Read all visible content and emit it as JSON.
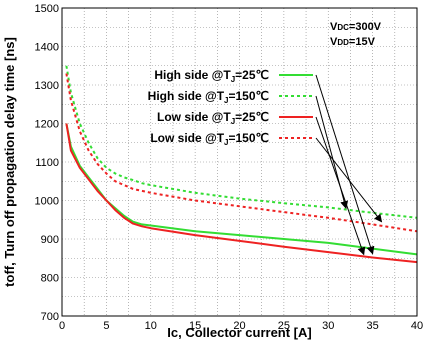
{
  "chart_data": {
    "type": "line",
    "xlabel": "Ic, Collector current [A]",
    "ylabel": "toff, Turn off propagation delay time [ns]",
    "xlim": [
      0,
      40
    ],
    "ylim": [
      700,
      1500
    ],
    "xticks": [
      0,
      5,
      10,
      15,
      20,
      25,
      30,
      35,
      40
    ],
    "yticks": [
      700,
      800,
      900,
      1000,
      1100,
      1200,
      1300,
      1400,
      1500
    ],
    "xtick_labels": [
      "0",
      "5",
      "10",
      "15",
      "20",
      "25",
      "30",
      "35",
      "40"
    ],
    "ytick_labels": [
      "700",
      "800",
      "900",
      "1000",
      "1100",
      "1200",
      "1300",
      "1400",
      "1500"
    ],
    "grid": true,
    "conditions": [
      "VDC=300V",
      "VDD=15V"
    ],
    "series": [
      {
        "name": "High side @TJ=25℃",
        "color": "#33dd33",
        "dash": "solid",
        "x": [
          0.5,
          1,
          2,
          3,
          4,
          5,
          6,
          7,
          8,
          9,
          10,
          15,
          20,
          25,
          30,
          35,
          40
        ],
        "y": [
          1200,
          1140,
          1090,
          1060,
          1030,
          1000,
          980,
          960,
          945,
          938,
          935,
          920,
          910,
          900,
          890,
          875,
          860
        ]
      },
      {
        "name": "High side @TJ=150℃",
        "color": "#33dd33",
        "dash": "dotted",
        "x": [
          0.5,
          1,
          2,
          3,
          4,
          5,
          6,
          7,
          8,
          9,
          10,
          15,
          20,
          25,
          30,
          35,
          40
        ],
        "y": [
          1350,
          1280,
          1200,
          1150,
          1110,
          1085,
          1070,
          1060,
          1053,
          1045,
          1040,
          1020,
          1005,
          993,
          982,
          968,
          955
        ]
      },
      {
        "name": "Low side @TJ=25℃",
        "color": "#ee2222",
        "dash": "solid",
        "x": [
          0.5,
          1,
          2,
          3,
          4,
          5,
          6,
          7,
          8,
          9,
          10,
          15,
          20,
          25,
          30,
          35,
          40
        ],
        "y": [
          1200,
          1130,
          1085,
          1055,
          1025,
          1000,
          975,
          955,
          940,
          933,
          928,
          910,
          895,
          880,
          866,
          852,
          840
        ]
      },
      {
        "name": "Low side @TJ=150℃",
        "color": "#ee2222",
        "dash": "dotted",
        "x": [
          0.5,
          1,
          2,
          3,
          4,
          5,
          6,
          7,
          8,
          9,
          10,
          15,
          20,
          25,
          30,
          35,
          40
        ],
        "y": [
          1330,
          1260,
          1180,
          1130,
          1095,
          1070,
          1050,
          1040,
          1030,
          1025,
          1020,
          1000,
          985,
          970,
          955,
          938,
          920
        ]
      }
    ],
    "legend": [
      {
        "text": "High side @T",
        "sub": "J",
        "tail": "=25℃",
        "series": 0
      },
      {
        "text": "High side @T",
        "sub": "J",
        "tail": "=150℃",
        "series": 1
      },
      {
        "text": "Low side @T",
        "sub": "J",
        "tail": "=25℃",
        "series": 2
      },
      {
        "text": "Low side @T",
        "sub": "J",
        "tail": "=150℃",
        "series": 3
      }
    ],
    "legend_placement": "top-center",
    "arrows": [
      {
        "from_series": 0,
        "to_x": 35,
        "to_y": 862
      },
      {
        "from_series": 1,
        "to_x": 32,
        "to_y": 980
      },
      {
        "from_series": 2,
        "to_x": 34,
        "to_y": 860
      },
      {
        "from_series": 3,
        "to_x": 36,
        "to_y": 945
      }
    ]
  }
}
